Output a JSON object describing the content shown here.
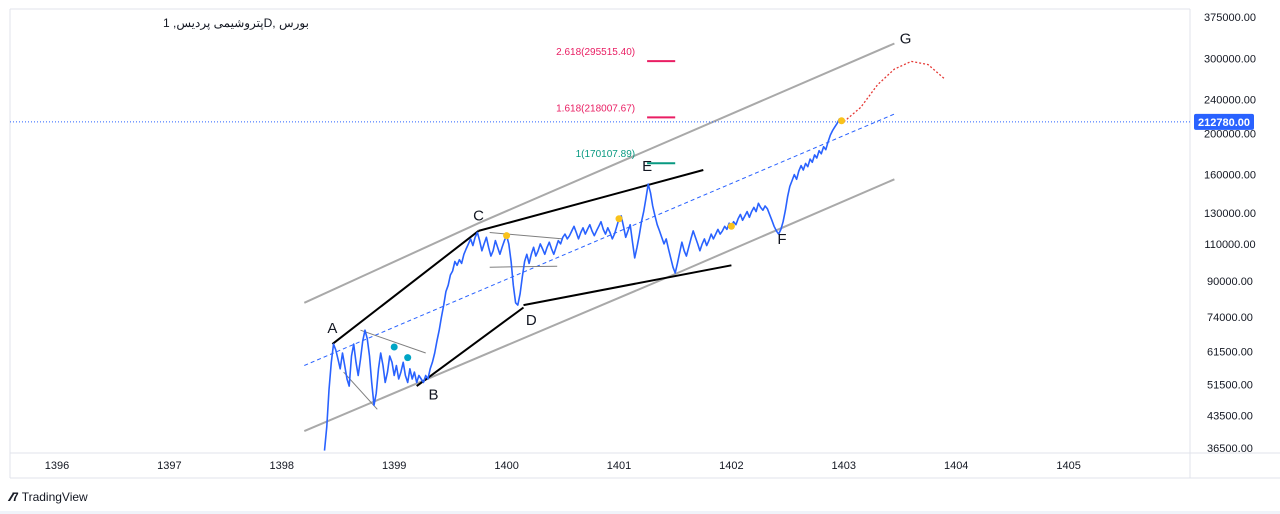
{
  "symbol_title": "بورس ,Dپتروشیمی پردیس, 1",
  "footer": {
    "brand": "TradingView",
    "logo_icon": "tradingview-logo-icon"
  },
  "colors": {
    "price_line": "#2962ff",
    "current_price_bg": "#2962ff",
    "fib_red": "#e91e63",
    "fib_green": "#089981",
    "channel": "#a9a9a9",
    "pattern": "#000000",
    "projection": "#e53935",
    "marker_yellow": "#f9c21b",
    "marker_teal": "#00a5c5"
  },
  "chart_data": {
    "type": "line",
    "title": "بورس ,Dپتروشیمی پردیس, 1",
    "scale": "log",
    "ylim": [
      35000,
      380000
    ],
    "y_ticks": [
      "375000.00",
      "300000.00",
      "240000.00",
      "200000.00",
      "160000.00",
      "130000.00",
      "110000.00",
      "90000.00",
      "74000.00",
      "61500.00",
      "51500.00",
      "43500.00",
      "36500.00"
    ],
    "x_ticks": [
      "1396",
      "1397",
      "1398",
      "1399",
      "1400",
      "1401",
      "1402",
      "1403",
      "1404",
      "1405"
    ],
    "current_price": "212780.00",
    "fib_levels": [
      {
        "label": "2.618(295515.40)",
        "value": 295515.4,
        "color": "fib_red"
      },
      {
        "label": "1.618(218007.67)",
        "value": 218007.67,
        "color": "fib_red"
      },
      {
        "label": "1(170107.89)",
        "value": 170107.89,
        "color": "fib_green"
      }
    ],
    "wave_labels": [
      {
        "label": "A",
        "x": 1398.45,
        "y": 68000
      },
      {
        "label": "B",
        "x": 1399.35,
        "y": 47500
      },
      {
        "label": "C",
        "x": 1399.75,
        "y": 125000
      },
      {
        "label": "D",
        "x": 1400.22,
        "y": 71000
      },
      {
        "label": "E",
        "x": 1401.25,
        "y": 163000
      },
      {
        "label": "F",
        "x": 1402.45,
        "y": 110000
      },
      {
        "label": "G",
        "x": 1403.55,
        "y": 325000
      }
    ],
    "series": [
      {
        "values": [
          [
            1398.38,
            36000
          ],
          [
            1398.4,
            41000
          ],
          [
            1398.42,
            50000
          ],
          [
            1398.44,
            58000
          ],
          [
            1398.46,
            64000
          ],
          [
            1398.48,
            62000
          ],
          [
            1398.5,
            59000
          ],
          [
            1398.52,
            56000
          ],
          [
            1398.54,
            61000
          ],
          [
            1398.56,
            57000
          ],
          [
            1398.58,
            53000
          ],
          [
            1398.6,
            51000
          ],
          [
            1398.62,
            60000
          ],
          [
            1398.64,
            64000
          ],
          [
            1398.66,
            58000
          ],
          [
            1398.68,
            54000
          ],
          [
            1398.7,
            59000
          ],
          [
            1398.72,
            65000
          ],
          [
            1398.74,
            69000
          ],
          [
            1398.76,
            66000
          ],
          [
            1398.78,
            60000
          ],
          [
            1398.8,
            52000
          ],
          [
            1398.82,
            46000
          ],
          [
            1398.84,
            49000
          ],
          [
            1398.86,
            56000
          ],
          [
            1398.88,
            61000
          ],
          [
            1398.9,
            57000
          ],
          [
            1398.92,
            52000
          ],
          [
            1398.94,
            55000
          ],
          [
            1398.96,
            60000
          ],
          [
            1398.98,
            58000
          ],
          [
            1399.0,
            54000
          ],
          [
            1399.02,
            57000
          ],
          [
            1399.04,
            53000
          ],
          [
            1399.06,
            55000
          ],
          [
            1399.08,
            58000
          ],
          [
            1399.1,
            54000
          ],
          [
            1399.12,
            52000
          ],
          [
            1399.14,
            56000
          ],
          [
            1399.16,
            53000
          ],
          [
            1399.18,
            55000
          ],
          [
            1399.2,
            52000
          ],
          [
            1399.22,
            54000
          ],
          [
            1399.24,
            53000
          ],
          [
            1399.26,
            52000
          ],
          [
            1399.28,
            54000
          ],
          [
            1399.3,
            53000
          ],
          [
            1399.32,
            56000
          ],
          [
            1399.34,
            58000
          ],
          [
            1399.36,
            61000
          ],
          [
            1399.38,
            65000
          ],
          [
            1399.4,
            69000
          ],
          [
            1399.42,
            74000
          ],
          [
            1399.44,
            79000
          ],
          [
            1399.46,
            85000
          ],
          [
            1399.48,
            88000
          ],
          [
            1399.5,
            93000
          ],
          [
            1399.52,
            95000
          ],
          [
            1399.54,
            100000
          ],
          [
            1399.56,
            98000
          ],
          [
            1399.58,
            101000
          ],
          [
            1399.6,
            99000
          ],
          [
            1399.62,
            104000
          ],
          [
            1399.64,
            107000
          ],
          [
            1399.66,
            110000
          ],
          [
            1399.68,
            113000
          ],
          [
            1399.7,
            109000
          ],
          [
            1399.72,
            114000
          ],
          [
            1399.74,
            117000
          ],
          [
            1399.76,
            112000
          ],
          [
            1399.78,
            106000
          ],
          [
            1399.8,
            110000
          ],
          [
            1399.82,
            114000
          ],
          [
            1399.84,
            108000
          ],
          [
            1399.86,
            103000
          ],
          [
            1399.88,
            106000
          ],
          [
            1399.9,
            112000
          ],
          [
            1399.92,
            108000
          ],
          [
            1399.94,
            104000
          ],
          [
            1399.96,
            108000
          ],
          [
            1399.98,
            112000
          ],
          [
            1400.0,
            115000
          ],
          [
            1400.02,
            110000
          ],
          [
            1400.04,
            100000
          ],
          [
            1400.06,
            88000
          ],
          [
            1400.08,
            80000
          ],
          [
            1400.1,
            79000
          ],
          [
            1400.12,
            84000
          ],
          [
            1400.14,
            92000
          ],
          [
            1400.16,
            100000
          ],
          [
            1400.18,
            104000
          ],
          [
            1400.2,
            99000
          ],
          [
            1400.22,
            104000
          ],
          [
            1400.24,
            108000
          ],
          [
            1400.26,
            103000
          ],
          [
            1400.28,
            106000
          ],
          [
            1400.3,
            110000
          ],
          [
            1400.32,
            107000
          ],
          [
            1400.34,
            104000
          ],
          [
            1400.36,
            108000
          ],
          [
            1400.38,
            111000
          ],
          [
            1400.4,
            107000
          ],
          [
            1400.42,
            104000
          ],
          [
            1400.44,
            108000
          ],
          [
            1400.46,
            112000
          ],
          [
            1400.48,
            110000
          ],
          [
            1400.5,
            114000
          ],
          [
            1400.52,
            116000
          ],
          [
            1400.54,
            113000
          ],
          [
            1400.56,
            115000
          ],
          [
            1400.58,
            118000
          ],
          [
            1400.6,
            121000
          ],
          [
            1400.62,
            117000
          ],
          [
            1400.64,
            113000
          ],
          [
            1400.66,
            117000
          ],
          [
            1400.68,
            120000
          ],
          [
            1400.7,
            116000
          ],
          [
            1400.72,
            119000
          ],
          [
            1400.74,
            122000
          ],
          [
            1400.76,
            118000
          ],
          [
            1400.78,
            115000
          ],
          [
            1400.8,
            118000
          ],
          [
            1400.82,
            121000
          ],
          [
            1400.84,
            124000
          ],
          [
            1400.86,
            119000
          ],
          [
            1400.88,
            116000
          ],
          [
            1400.9,
            120000
          ],
          [
            1400.92,
            117000
          ],
          [
            1400.94,
            113000
          ],
          [
            1400.96,
            116000
          ],
          [
            1400.98,
            121000
          ],
          [
            1401.0,
            126000
          ],
          [
            1401.02,
            128000
          ],
          [
            1401.04,
            121000
          ],
          [
            1401.06,
            114000
          ],
          [
            1401.08,
            118000
          ],
          [
            1401.1,
            122000
          ],
          [
            1401.12,
            111000
          ],
          [
            1401.14,
            102000
          ],
          [
            1401.16,
            108000
          ],
          [
            1401.18,
            115000
          ],
          [
            1401.2,
            124000
          ],
          [
            1401.22,
            131000
          ],
          [
            1401.24,
            141000
          ],
          [
            1401.26,
            152000
          ],
          [
            1401.28,
            145000
          ],
          [
            1401.3,
            135000
          ],
          [
            1401.32,
            128000
          ],
          [
            1401.34,
            122000
          ],
          [
            1401.36,
            118000
          ],
          [
            1401.38,
            114000
          ],
          [
            1401.4,
            110000
          ],
          [
            1401.42,
            113000
          ],
          [
            1401.44,
            107000
          ],
          [
            1401.46,
            102000
          ],
          [
            1401.48,
            97000
          ],
          [
            1401.5,
            94000
          ],
          [
            1401.52,
            99000
          ],
          [
            1401.54,
            105000
          ],
          [
            1401.56,
            111000
          ],
          [
            1401.58,
            106000
          ],
          [
            1401.6,
            103000
          ],
          [
            1401.62,
            108000
          ],
          [
            1401.64,
            113000
          ],
          [
            1401.66,
            118000
          ],
          [
            1401.68,
            114000
          ],
          [
            1401.7,
            110000
          ],
          [
            1401.72,
            106000
          ],
          [
            1401.74,
            110000
          ],
          [
            1401.76,
            113000
          ],
          [
            1401.78,
            109000
          ],
          [
            1401.8,
            112000
          ],
          [
            1401.82,
            116000
          ],
          [
            1401.84,
            113000
          ],
          [
            1401.86,
            116000
          ],
          [
            1401.88,
            119000
          ],
          [
            1401.9,
            116000
          ],
          [
            1401.92,
            118000
          ],
          [
            1401.94,
            121000
          ],
          [
            1401.96,
            119000
          ],
          [
            1401.98,
            123000
          ],
          [
            1402.0,
            121000
          ],
          [
            1402.02,
            124000
          ],
          [
            1402.04,
            122000
          ],
          [
            1402.06,
            126000
          ],
          [
            1402.08,
            129000
          ],
          [
            1402.1,
            125000
          ],
          [
            1402.12,
            128000
          ],
          [
            1402.14,
            131000
          ],
          [
            1402.16,
            127000
          ],
          [
            1402.18,
            131000
          ],
          [
            1402.2,
            134000
          ],
          [
            1402.22,
            131000
          ],
          [
            1402.24,
            137000
          ],
          [
            1402.26,
            134000
          ],
          [
            1402.28,
            132000
          ],
          [
            1402.3,
            135000
          ],
          [
            1402.32,
            133000
          ],
          [
            1402.34,
            129000
          ],
          [
            1402.36,
            125000
          ],
          [
            1402.38,
            121000
          ],
          [
            1402.4,
            118000
          ],
          [
            1402.42,
            116000
          ],
          [
            1402.44,
            119000
          ],
          [
            1402.46,
            124000
          ],
          [
            1402.48,
            132000
          ],
          [
            1402.5,
            142000
          ],
          [
            1402.52,
            150000
          ],
          [
            1402.54,
            155000
          ],
          [
            1402.56,
            160000
          ],
          [
            1402.58,
            156000
          ],
          [
            1402.6,
            163000
          ],
          [
            1402.62,
            168000
          ],
          [
            1402.64,
            164000
          ],
          [
            1402.66,
            170000
          ],
          [
            1402.68,
            167000
          ],
          [
            1402.7,
            174000
          ],
          [
            1402.72,
            171000
          ],
          [
            1402.74,
            178000
          ],
          [
            1402.76,
            175000
          ],
          [
            1402.78,
            182000
          ],
          [
            1402.8,
            179000
          ],
          [
            1402.82,
            186000
          ],
          [
            1402.84,
            183000
          ],
          [
            1402.86,
            191000
          ],
          [
            1402.88,
            198000
          ],
          [
            1402.9,
            203000
          ],
          [
            1402.92,
            207000
          ],
          [
            1402.94,
            211000
          ],
          [
            1402.96,
            216000
          ],
          [
            1402.98,
            213000
          ],
          [
            1403.0,
            212780
          ]
        ]
      }
    ],
    "markers": [
      {
        "x": 1399.0,
        "y": 63000,
        "color": "marker_teal"
      },
      {
        "x": 1399.12,
        "y": 59500,
        "color": "marker_teal"
      },
      {
        "x": 1400.0,
        "y": 115000,
        "color": "marker_yellow"
      },
      {
        "x": 1401.0,
        "y": 126000,
        "color": "marker_yellow"
      },
      {
        "x": 1402.0,
        "y": 121000,
        "color": "marker_yellow"
      },
      {
        "x": 1402.98,
        "y": 214000,
        "color": "marker_yellow"
      }
    ],
    "projection": [
      [
        1403.0,
        212780
      ],
      [
        1403.15,
        230000
      ],
      [
        1403.3,
        260000
      ],
      [
        1403.45,
        283000
      ],
      [
        1403.6,
        295000
      ],
      [
        1403.75,
        290000
      ],
      [
        1403.9,
        268000
      ]
    ],
    "channel_lines": [
      [
        [
          1398.2,
          80000
        ],
        [
          1399.75,
          123000
        ],
        [
          1403.45,
          325000
        ]
      ],
      [
        [
          1398.2,
          40000
        ],
        [
          1401.5,
          93500
        ],
        [
          1403.45,
          156000
        ]
      ]
    ],
    "midline": [
      [
        1398.2,
        57000
      ],
      [
        1403.45,
        222000
      ]
    ],
    "pattern_lines": [
      [
        [
          1398.45,
          64000
        ],
        [
          1399.75,
          118000
        ]
      ],
      [
        [
          1399.2,
          51000
        ],
        [
          1400.15,
          78000
        ]
      ],
      [
        [
          1399.75,
          118000
        ],
        [
          1401.75,
          164000
        ]
      ],
      [
        [
          1400.15,
          79000
        ],
        [
          1402.0,
          98000
        ]
      ],
      [
        [
          1398.7,
          69000
        ],
        [
          1399.28,
          61000
        ]
      ],
      [
        [
          1398.55,
          55000
        ],
        [
          1398.85,
          45000
        ]
      ],
      [
        [
          1399.85,
          117000
        ],
        [
          1400.5,
          113000
        ]
      ],
      [
        [
          1399.85,
          97000
        ],
        [
          1400.45,
          97500
        ]
      ]
    ],
    "fib_segments": [
      {
        "level": 295515.4,
        "x0": 1401.25,
        "x1": 1401.5
      },
      {
        "level": 218007.67,
        "x0": 1401.25,
        "x1": 1401.5
      },
      {
        "level": 170107.89,
        "x0": 1401.25,
        "x1": 1401.5
      }
    ]
  }
}
